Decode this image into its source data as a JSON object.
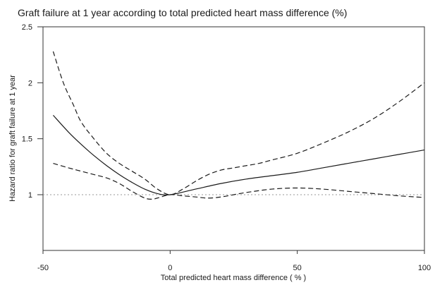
{
  "chart_data": {
    "type": "line",
    "title": "Graft failure at 1 year according to total predicted heart mass difference (%)",
    "xlabel": "Total predicted heart mass difference ( % )",
    "ylabel": "Hazard ratio for graft failure at 1 year",
    "xlim": [
      -50,
      100
    ],
    "ylim": [
      0.55,
      2.5
    ],
    "x_ticks": [
      -50,
      0,
      50,
      100
    ],
    "x_tick_labels": [
      "-50",
      "0",
      "50",
      "100"
    ],
    "y_ticks": [
      1,
      1.5,
      2,
      2.5
    ],
    "y_tick_labels": [
      "1",
      "1.5",
      "2",
      "2.5"
    ],
    "reference_line": {
      "y": 1,
      "style": "dotted"
    },
    "grid": false,
    "series": [
      {
        "style": "solid",
        "x": [
          -46,
          -40,
          -35,
          -30,
          -25,
          -20,
          -15,
          -10,
          -5,
          0,
          10,
          20,
          30,
          40,
          50,
          60,
          70,
          80,
          90,
          100
        ],
        "values": [
          1.71,
          1.56,
          1.45,
          1.35,
          1.26,
          1.18,
          1.11,
          1.05,
          1.01,
          1.0,
          1.05,
          1.1,
          1.14,
          1.17,
          1.2,
          1.24,
          1.28,
          1.32,
          1.36,
          1.4
        ]
      },
      {
        "style": "dashed",
        "x": [
          -46,
          -42,
          -38,
          -35,
          -30,
          -25,
          -20,
          -15,
          -10,
          -5,
          0,
          5,
          10,
          15,
          20,
          25,
          30,
          35,
          40,
          50,
          60,
          70,
          80,
          90,
          100
        ],
        "values": [
          2.28,
          2.0,
          1.8,
          1.65,
          1.5,
          1.37,
          1.28,
          1.21,
          1.14,
          1.05,
          1.0,
          1.05,
          1.12,
          1.18,
          1.22,
          1.24,
          1.26,
          1.28,
          1.31,
          1.37,
          1.46,
          1.56,
          1.68,
          1.83,
          2.0
        ]
      },
      {
        "style": "dashed",
        "x": [
          -46,
          -40,
          -35,
          -30,
          -25,
          -20,
          -15,
          -10,
          -7,
          -5,
          0,
          5,
          10,
          15,
          20,
          25,
          30,
          40,
          50,
          60,
          70,
          80,
          90,
          100
        ],
        "values": [
          1.28,
          1.24,
          1.21,
          1.18,
          1.15,
          1.1,
          1.03,
          0.97,
          0.96,
          0.97,
          1.0,
          0.99,
          0.98,
          0.97,
          0.98,
          1.0,
          1.02,
          1.05,
          1.06,
          1.05,
          1.03,
          1.01,
          0.99,
          0.975
        ]
      }
    ]
  },
  "colors": {
    "line": "#1a1a1a",
    "axis": "#333333",
    "reference": "#999999"
  }
}
